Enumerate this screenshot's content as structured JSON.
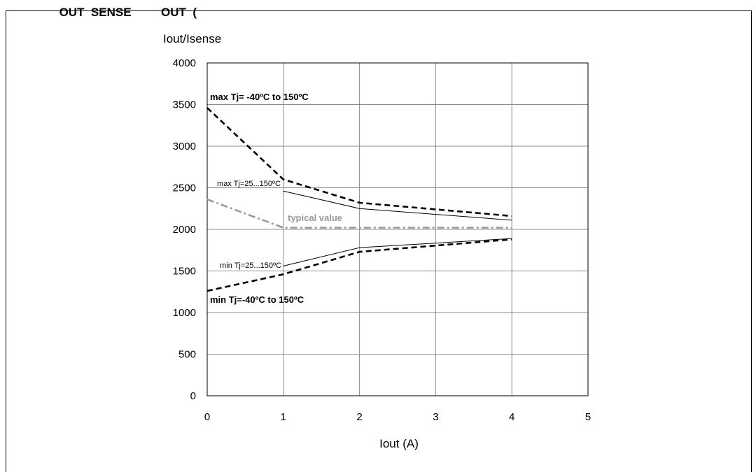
{
  "figure": {
    "caption_fragment": "                OUT  SENSE         OUT  ("
  },
  "chart_data": {
    "type": "line",
    "ylabel": "Iout/Isense",
    "xlabel": "Iout (A)",
    "xlim": [
      0,
      5
    ],
    "ylim": [
      0,
      4000
    ],
    "x_ticks": [
      "0",
      "1",
      "2",
      "3",
      "4",
      "5"
    ],
    "y_ticks": [
      "0",
      "500",
      "1000",
      "1500",
      "2000",
      "2500",
      "3000",
      "3500",
      "4000"
    ],
    "grid": true,
    "series": [
      {
        "name": "max Tj= -40ºC to 150ºC",
        "style": "dashed-bold",
        "color": "#000000",
        "x": [
          0,
          1,
          2,
          4
        ],
        "y": [
          3460,
          2600,
          2320,
          2160
        ]
      },
      {
        "name": "max Tj=25...150ºC",
        "style": "solid-thin",
        "color": "#000000",
        "x": [
          1,
          2,
          4
        ],
        "y": [
          2460,
          2250,
          2110
        ]
      },
      {
        "name": "typical value",
        "style": "dashdot",
        "color": "#9a9a9a",
        "x": [
          0,
          1,
          2,
          4
        ],
        "y": [
          2360,
          2020,
          2020,
          2020
        ]
      },
      {
        "name": "min Tj=25...150ºC",
        "style": "solid-thin",
        "color": "#000000",
        "x": [
          1,
          2,
          4
        ],
        "y": [
          1560,
          1780,
          1890
        ]
      },
      {
        "name": "min Tj=-40ºC to 150ºC",
        "style": "dashed-bold",
        "color": "#000000",
        "x": [
          0,
          1,
          2,
          4
        ],
        "y": [
          1260,
          1460,
          1730,
          1880
        ]
      }
    ]
  }
}
